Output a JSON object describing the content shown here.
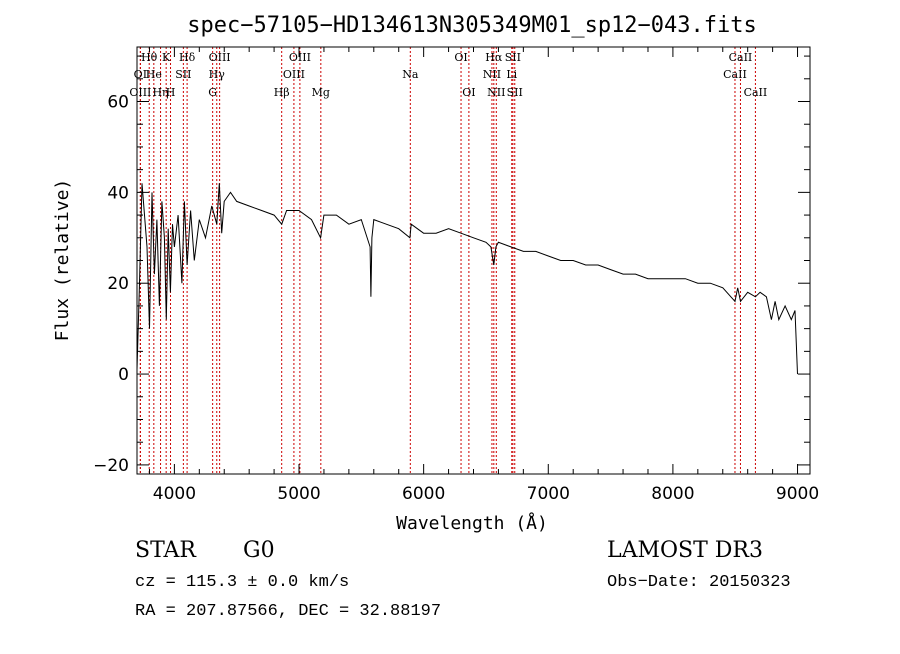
{
  "chart_data": {
    "type": "line",
    "title": "spec−57105−HD134613N305349M01_sp12−043.fits",
    "xlabel": "Wavelength (Å)",
    "ylabel": "Flux (relative)",
    "xlim": [
      3700,
      9100
    ],
    "ylim": [
      -22,
      72
    ],
    "xticks": [
      4000,
      5000,
      6000,
      7000,
      8000,
      9000
    ],
    "yticks": [
      -20,
      0,
      20,
      40,
      60
    ],
    "xtick_labels": [
      "4000",
      "5000",
      "6000",
      "7000",
      "8000",
      "9000"
    ],
    "ytick_labels": [
      "−20",
      "0",
      "20",
      "40",
      "60"
    ],
    "series": [
      {
        "name": "flux",
        "x": [
          3700,
          3720,
          3740,
          3760,
          3780,
          3800,
          3820,
          3840,
          3860,
          3880,
          3900,
          3920,
          3935,
          3950,
          3968,
          3985,
          4000,
          4030,
          4060,
          4080,
          4102,
          4130,
          4160,
          4200,
          4250,
          4300,
          4340,
          4360,
          4380,
          4400,
          4450,
          4500,
          4600,
          4700,
          4800,
          4861,
          4900,
          5000,
          5100,
          5173,
          5200,
          5300,
          5400,
          5500,
          5570,
          5577,
          5585,
          5600,
          5700,
          5800,
          5890,
          5900,
          6000,
          6100,
          6200,
          6300,
          6400,
          6500,
          6540,
          6563,
          6580,
          6600,
          6700,
          6800,
          6900,
          7000,
          7100,
          7200,
          7300,
          7400,
          7500,
          7600,
          7700,
          7800,
          7900,
          8000,
          8100,
          8200,
          8300,
          8400,
          8498,
          8520,
          8542,
          8600,
          8662,
          8700,
          8750,
          8790,
          8820,
          8850,
          8900,
          8950,
          8980,
          9000
        ],
        "y": [
          1,
          20,
          42,
          35,
          28,
          10,
          40,
          22,
          34,
          15,
          38,
          30,
          12,
          32,
          18,
          33,
          28,
          35,
          20,
          38,
          24,
          36,
          25,
          34,
          30,
          37,
          33,
          42,
          31,
          38,
          40,
          38,
          37,
          36,
          35,
          33,
          36,
          36,
          34,
          30,
          35,
          35,
          33,
          34,
          28,
          17,
          30,
          34,
          33,
          32,
          30,
          33,
          31,
          31,
          32,
          31,
          30,
          29,
          28,
          24,
          28,
          29,
          28,
          27,
          27,
          26,
          25,
          25,
          24,
          24,
          23,
          22,
          22,
          21,
          21,
          21,
          21,
          20,
          20,
          19,
          16,
          19,
          16,
          18,
          17,
          18,
          17,
          12,
          16,
          12,
          15,
          12,
          14,
          0
        ]
      }
    ],
    "lines": [
      {
        "label": "OI",
        "wave": 3727,
        "row": 2
      },
      {
        "label": "OIII",
        "wave": 3727,
        "row": 3
      },
      {
        "label": "Hθ",
        "wave": 3798,
        "row": 1
      },
      {
        "label": "He",
        "wave": 3835,
        "row": 2
      },
      {
        "label": "Hη",
        "wave": 3889,
        "row": 3
      },
      {
        "label": "K",
        "wave": 3934,
        "row": 1
      },
      {
        "label": "SII",
        "wave": 4072,
        "row": 2
      },
      {
        "label": "H",
        "wave": 3969,
        "row": 3
      },
      {
        "label": "Hδ",
        "wave": 4102,
        "row": 1
      },
      {
        "label": "OIII",
        "wave": 4363,
        "row": 1
      },
      {
        "label": "Hγ",
        "wave": 4340,
        "row": 2
      },
      {
        "label": "G",
        "wave": 4307,
        "row": 3
      },
      {
        "label": "Hβ",
        "wave": 4861,
        "row": 3
      },
      {
        "label": "OIII",
        "wave": 5007,
        "row": 1
      },
      {
        "label": "OIII",
        "wave": 4959,
        "row": 2
      },
      {
        "label": "Mg",
        "wave": 5175,
        "row": 3
      },
      {
        "label": "Na",
        "wave": 5893,
        "row": 2
      },
      {
        "label": "OI",
        "wave": 6300,
        "row": 1
      },
      {
        "label": "OI",
        "wave": 6363,
        "row": 3
      },
      {
        "label": "Hα",
        "wave": 6563,
        "row": 1
      },
      {
        "label": "NII",
        "wave": 6548,
        "row": 2
      },
      {
        "label": "NII",
        "wave": 6583,
        "row": 3
      },
      {
        "label": "SII",
        "wave": 6716,
        "row": 1
      },
      {
        "label": "Li",
        "wave": 6707,
        "row": 2
      },
      {
        "label": "SII",
        "wave": 6731,
        "row": 3
      },
      {
        "label": "CaII",
        "wave": 8542,
        "row": 1
      },
      {
        "label": "CaII",
        "wave": 8498,
        "row": 2
      },
      {
        "label": "CaII",
        "wave": 8662,
        "row": 3
      }
    ],
    "grid": false,
    "legend": "none"
  },
  "info": {
    "class": "STAR",
    "subclass": "G0",
    "survey": "LAMOST DR3",
    "cz": "cz = 115.3 ± 0.0 km/s",
    "obs_date": "Obs−Date: 20150323",
    "coords": "RA = 207.87566, DEC =  32.88197"
  },
  "colors": {
    "spectrum": "#000000",
    "line_markers": "#cc0000",
    "background": "#ffffff"
  }
}
